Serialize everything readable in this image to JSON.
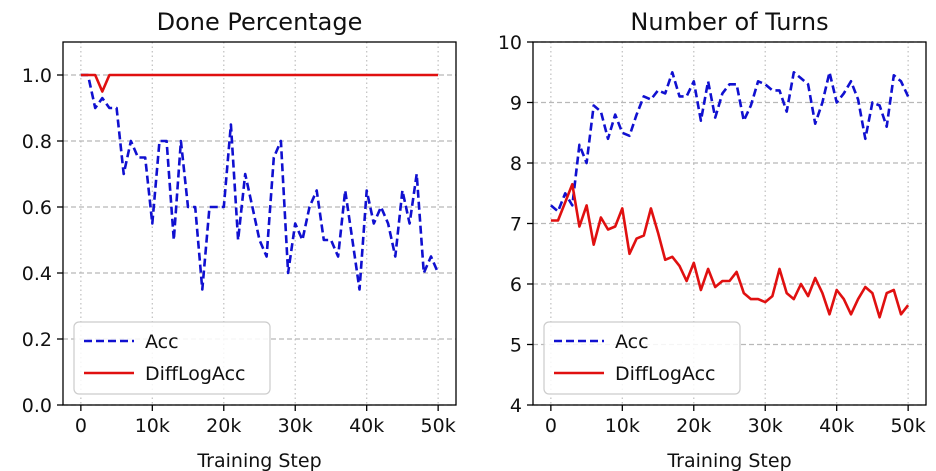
{
  "chart_data": [
    {
      "type": "line",
      "title": "Done Percentage",
      "xlabel": "Training Step",
      "ylabel": "",
      "xlim": [
        -2500,
        52500
      ],
      "ylim": [
        0.0,
        1.1
      ],
      "xticks": [
        0,
        10000,
        20000,
        30000,
        40000,
        50000
      ],
      "xtick_labels": [
        "0",
        "10k",
        "20k",
        "30k",
        "40k",
        "50k"
      ],
      "yticks": [
        0.0,
        0.2,
        0.4,
        0.6,
        0.8,
        1.0
      ],
      "ytick_labels": [
        "0.0",
        "0.2",
        "0.4",
        "0.6",
        "0.8",
        "1.0"
      ],
      "grid": "x dotted, y dashed",
      "legend_position": "lower-left",
      "x": [
        0,
        1000,
        2000,
        3000,
        4000,
        5000,
        6000,
        7000,
        8000,
        9000,
        10000,
        11000,
        12000,
        13000,
        14000,
        15000,
        16000,
        17000,
        18000,
        19000,
        20000,
        21000,
        22000,
        23000,
        24000,
        25000,
        26000,
        27000,
        28000,
        29000,
        30000,
        31000,
        32000,
        33000,
        34000,
        35000,
        36000,
        37000,
        38000,
        39000,
        40000,
        41000,
        42000,
        43000,
        44000,
        45000,
        46000,
        47000,
        48000,
        49000,
        50000
      ],
      "series": [
        {
          "name": "Acc",
          "color": "#1010d0",
          "dash": "dashed",
          "values": [
            1.0,
            1.0,
            0.9,
            0.93,
            0.9,
            0.9,
            0.7,
            0.8,
            0.75,
            0.75,
            0.55,
            0.8,
            0.8,
            0.5,
            0.8,
            0.6,
            0.6,
            0.35,
            0.6,
            0.6,
            0.6,
            0.85,
            0.5,
            0.7,
            0.6,
            0.5,
            0.45,
            0.75,
            0.8,
            0.4,
            0.55,
            0.5,
            0.6,
            0.65,
            0.5,
            0.5,
            0.45,
            0.65,
            0.5,
            0.35,
            0.65,
            0.55,
            0.6,
            0.55,
            0.45,
            0.65,
            0.55,
            0.7,
            0.4,
            0.45,
            0.4
          ]
        },
        {
          "name": "DiffLogAcc",
          "color": "#e01010",
          "dash": "solid",
          "values": [
            1.0,
            1.0,
            1.0,
            0.95,
            1.0,
            1.0,
            1.0,
            1.0,
            1.0,
            1.0,
            1.0,
            1.0,
            1.0,
            1.0,
            1.0,
            1.0,
            1.0,
            1.0,
            1.0,
            1.0,
            1.0,
            1.0,
            1.0,
            1.0,
            1.0,
            1.0,
            1.0,
            1.0,
            1.0,
            1.0,
            1.0,
            1.0,
            1.0,
            1.0,
            1.0,
            1.0,
            1.0,
            1.0,
            1.0,
            1.0,
            1.0,
            1.0,
            1.0,
            1.0,
            1.0,
            1.0,
            1.0,
            1.0,
            1.0,
            1.0,
            1.0
          ]
        }
      ]
    },
    {
      "type": "line",
      "title": "Number of Turns",
      "xlabel": "Training Step",
      "ylabel": "",
      "xlim": [
        -2500,
        52500
      ],
      "ylim": [
        4,
        10
      ],
      "xticks": [
        0,
        10000,
        20000,
        30000,
        40000,
        50000
      ],
      "xtick_labels": [
        "0",
        "10k",
        "20k",
        "30k",
        "40k",
        "50k"
      ],
      "yticks": [
        4,
        5,
        6,
        7,
        8,
        9,
        10
      ],
      "ytick_labels": [
        "4",
        "5",
        "6",
        "7",
        "8",
        "9",
        "10"
      ],
      "grid": "x dotted, y dashed",
      "legend_position": "lower-left",
      "x": [
        0,
        1000,
        2000,
        3000,
        4000,
        5000,
        6000,
        7000,
        8000,
        9000,
        10000,
        11000,
        12000,
        13000,
        14000,
        15000,
        16000,
        17000,
        18000,
        19000,
        20000,
        21000,
        22000,
        23000,
        24000,
        25000,
        26000,
        27000,
        28000,
        29000,
        30000,
        31000,
        32000,
        33000,
        34000,
        35000,
        36000,
        37000,
        38000,
        39000,
        40000,
        41000,
        42000,
        43000,
        44000,
        45000,
        46000,
        47000,
        48000,
        49000,
        50000
      ],
      "series": [
        {
          "name": "Acc",
          "color": "#1010d0",
          "dash": "dashed",
          "values": [
            7.3,
            7.2,
            7.5,
            7.3,
            8.3,
            8.0,
            8.95,
            8.85,
            8.4,
            8.8,
            8.5,
            8.45,
            8.8,
            9.1,
            9.05,
            9.2,
            9.15,
            9.5,
            9.1,
            9.1,
            9.35,
            8.7,
            9.35,
            8.75,
            9.15,
            9.3,
            9.3,
            8.7,
            8.95,
            9.35,
            9.3,
            9.2,
            9.2,
            8.85,
            9.5,
            9.4,
            9.3,
            8.65,
            9.0,
            9.5,
            9.0,
            9.15,
            9.35,
            9.05,
            8.4,
            9.0,
            8.95,
            8.6,
            9.45,
            9.35,
            9.1
          ]
        },
        {
          "name": "DiffLogAcc",
          "color": "#e01010",
          "dash": "solid",
          "values": [
            7.05,
            7.05,
            7.35,
            7.65,
            6.95,
            7.3,
            6.65,
            7.1,
            6.9,
            6.95,
            7.25,
            6.5,
            6.75,
            6.8,
            7.25,
            6.85,
            6.4,
            6.45,
            6.3,
            6.05,
            6.35,
            5.9,
            6.25,
            5.95,
            6.05,
            6.05,
            6.2,
            5.85,
            5.75,
            5.75,
            5.7,
            5.8,
            6.25,
            5.85,
            5.75,
            6.0,
            5.8,
            6.1,
            5.85,
            5.5,
            5.9,
            5.75,
            5.5,
            5.75,
            5.95,
            5.85,
            5.45,
            5.85,
            5.9,
            5.5,
            5.65
          ]
        }
      ]
    }
  ]
}
